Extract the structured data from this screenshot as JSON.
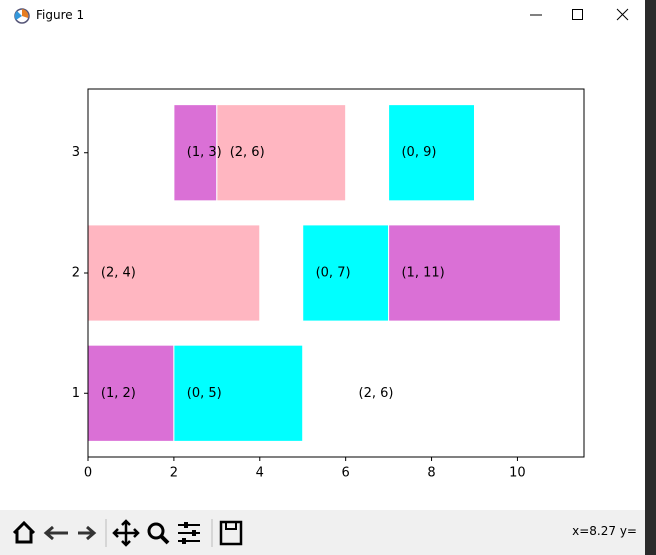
{
  "window": {
    "title": "Figure 1",
    "status": "x=8.27 y="
  },
  "chart_data": {
    "type": "broken_barh",
    "xlim": [
      0,
      11.55
    ],
    "ylim": [
      0.47,
      3.53
    ],
    "xticks": [
      0,
      2,
      4,
      6,
      8,
      10
    ],
    "yticks": [
      1,
      2,
      3
    ],
    "bars": [
      {
        "row": 1,
        "start": 0,
        "width": 2,
        "color": "#da70d6",
        "label": "(1, 2)"
      },
      {
        "row": 1,
        "start": 2,
        "width": 3,
        "color": "#00ffff",
        "label": "(0, 5)"
      },
      {
        "row": 1,
        "start": 6,
        "width": 0,
        "color": "#ffb6c1",
        "label": "(2, 6)"
      },
      {
        "row": 2,
        "start": 0,
        "width": 4,
        "color": "#ffb6c1",
        "label": "(2, 4)"
      },
      {
        "row": 2,
        "start": 5,
        "width": 2,
        "color": "#00ffff",
        "label": "(0, 7)"
      },
      {
        "row": 2,
        "start": 7,
        "width": 4,
        "color": "#da70d6",
        "label": "(1, 11)"
      },
      {
        "row": 3,
        "start": 2,
        "width": 1,
        "color": "#da70d6",
        "label": "(1, 3)"
      },
      {
        "row": 3,
        "start": 3,
        "width": 3,
        "color": "#ffb6c1",
        "label": "(2, 6)"
      },
      {
        "row": 3,
        "start": 7,
        "width": 2,
        "color": "#00ffff",
        "label": "(0, 9)"
      }
    ]
  }
}
